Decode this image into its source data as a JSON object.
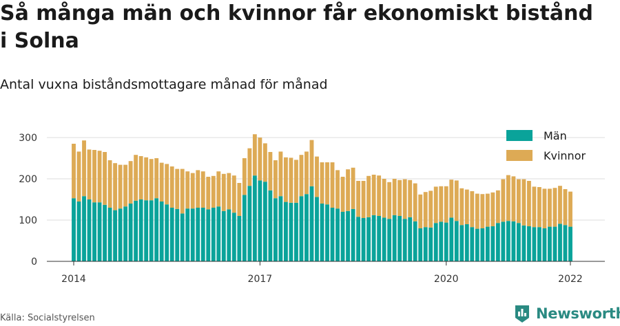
{
  "title": "Så många män och kvinnor får ekonomiskt bistånd i Solna",
  "subtitle": "Antal vuxna biståndsmottagare månad för månad",
  "source": "Källa: Socialstyrelsen",
  "brand": "Newsworthy",
  "colors": {
    "men": "#0aa39a",
    "women": "#ddaa55",
    "brand": "#2a8a82"
  },
  "chart_data": {
    "type": "bar",
    "stacked": true,
    "start": "2014-01",
    "x_ticks": [
      "2014",
      "2017",
      "2020",
      "2022"
    ],
    "y_ticks": [
      0,
      100,
      200,
      300
    ],
    "ylim": [
      0,
      320
    ],
    "legend": {
      "position": "top-right",
      "entries": [
        "Män",
        "Kvinnor"
      ]
    },
    "grid": true,
    "series": [
      {
        "name": "Män",
        "values": [
          153,
          145,
          158,
          150,
          143,
          143,
          137,
          130,
          124,
          128,
          133,
          140,
          147,
          150,
          148,
          148,
          153,
          145,
          138,
          130,
          127,
          116,
          128,
          128,
          130,
          130,
          126,
          130,
          133,
          122,
          126,
          118,
          110,
          161,
          183,
          208,
          196,
          193,
          172,
          153,
          158,
          144,
          142,
          142,
          158,
          163,
          182,
          156,
          140,
          138,
          130,
          128,
          120,
          122,
          127,
          108,
          105,
          107,
          112,
          110,
          106,
          103,
          112,
          110,
          103,
          107,
          97,
          80,
          83,
          82,
          93,
          96,
          94,
          106,
          98,
          88,
          90,
          83,
          79,
          80,
          84,
          85,
          93,
          96,
          98,
          97,
          93,
          87,
          85,
          83,
          83,
          80,
          84,
          84,
          91,
          88,
          84
        ]
      },
      {
        "name": "Kvinnor",
        "values": [
          132,
          121,
          135,
          121,
          127,
          125,
          128,
          115,
          114,
          106,
          101,
          103,
          111,
          105,
          104,
          100,
          97,
          94,
          98,
          100,
          97,
          108,
          90,
          86,
          91,
          88,
          79,
          77,
          85,
          90,
          88,
          90,
          80,
          89,
          91,
          100,
          104,
          93,
          93,
          92,
          108,
          108,
          109,
          104,
          100,
          103,
          112,
          98,
          100,
          102,
          110,
          93,
          85,
          101,
          100,
          87,
          90,
          100,
          98,
          98,
          94,
          89,
          88,
          87,
          96,
          90,
          92,
          82,
          85,
          89,
          88,
          86,
          88,
          92,
          98,
          89,
          84,
          87,
          85,
          83,
          80,
          82,
          79,
          103,
          111,
          109,
          106,
          112,
          110,
          98,
          97,
          96,
          92,
          94,
          92,
          87,
          85
        ]
      }
    ]
  }
}
